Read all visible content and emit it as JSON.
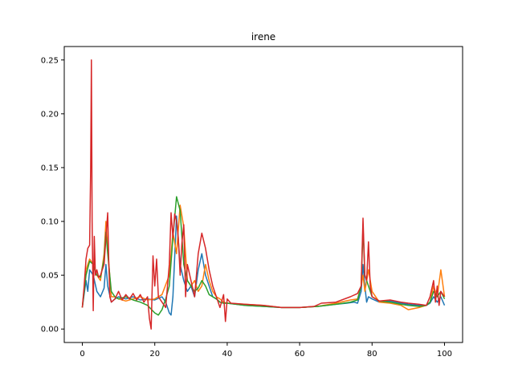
{
  "chart_data": {
    "type": "line",
    "title": "irene",
    "xlabel": "",
    "ylabel": "",
    "xlim": [
      -5,
      105
    ],
    "ylim": [
      -0.0125,
      0.2625
    ],
    "x_ticks": [
      0,
      20,
      40,
      60,
      80,
      100
    ],
    "x_tick_labels": [
      "0",
      "20",
      "40",
      "60",
      "80",
      "100"
    ],
    "y_ticks": [
      0.0,
      0.05,
      0.1,
      0.15,
      0.2,
      0.25
    ],
    "y_tick_labels": [
      "0.00",
      "0.05",
      "0.10",
      "0.15",
      "0.20",
      "0.25"
    ],
    "grid": false,
    "legend": "none",
    "series": [
      {
        "color": "#1f77b4",
        "points": [
          [
            0,
            0.02
          ],
          [
            1,
            0.045
          ],
          [
            1.5,
            0.035
          ],
          [
            2,
            0.055
          ],
          [
            3,
            0.05
          ],
          [
            4,
            0.035
          ],
          [
            5,
            0.03
          ],
          [
            6,
            0.038
          ],
          [
            6.5,
            0.06
          ],
          [
            7,
            0.04
          ],
          [
            8,
            0.025
          ],
          [
            9,
            0.028
          ],
          [
            10,
            0.03
          ],
          [
            12,
            0.028
          ],
          [
            14,
            0.03
          ],
          [
            16,
            0.027
          ],
          [
            18,
            0.028
          ],
          [
            20,
            0.027
          ],
          [
            22,
            0.03
          ],
          [
            23,
            0.025
          ],
          [
            24,
            0.015
          ],
          [
            24.5,
            0.013
          ],
          [
            25,
            0.03
          ],
          [
            26,
            0.105
          ],
          [
            27,
            0.06
          ],
          [
            28,
            0.045
          ],
          [
            29,
            0.035
          ],
          [
            30,
            0.04
          ],
          [
            31,
            0.03
          ],
          [
            32,
            0.055
          ],
          [
            33,
            0.07
          ],
          [
            34,
            0.05
          ],
          [
            35,
            0.04
          ],
          [
            36,
            0.03
          ],
          [
            37,
            0.028
          ],
          [
            38,
            0.025
          ],
          [
            39,
            0.024
          ],
          [
            40,
            0.024
          ],
          [
            45,
            0.022
          ],
          [
            50,
            0.021
          ],
          [
            55,
            0.02
          ],
          [
            60,
            0.02
          ],
          [
            65,
            0.021
          ],
          [
            70,
            0.023
          ],
          [
            73,
            0.024
          ],
          [
            75,
            0.025
          ],
          [
            76,
            0.024
          ],
          [
            77,
            0.035
          ],
          [
            77.5,
            0.06
          ],
          [
            78,
            0.04
          ],
          [
            78.5,
            0.025
          ],
          [
            79,
            0.03
          ],
          [
            80,
            0.028
          ],
          [
            82,
            0.025
          ],
          [
            85,
            0.026
          ],
          [
            88,
            0.024
          ],
          [
            90,
            0.023
          ],
          [
            93,
            0.022
          ],
          [
            95,
            0.022
          ],
          [
            96,
            0.024
          ],
          [
            97,
            0.03
          ],
          [
            98,
            0.025
          ],
          [
            99,
            0.03
          ],
          [
            100,
            0.022
          ]
        ]
      },
      {
        "color": "#ff7f0e",
        "points": [
          [
            0,
            0.02
          ],
          [
            1,
            0.055
          ],
          [
            2,
            0.065
          ],
          [
            3,
            0.06
          ],
          [
            4,
            0.05
          ],
          [
            5,
            0.045
          ],
          [
            6,
            0.07
          ],
          [
            6.5,
            0.1
          ],
          [
            7,
            0.075
          ],
          [
            8,
            0.03
          ],
          [
            9,
            0.03
          ],
          [
            10,
            0.028
          ],
          [
            12,
            0.026
          ],
          [
            14,
            0.028
          ],
          [
            16,
            0.03
          ],
          [
            18,
            0.027
          ],
          [
            20,
            0.028
          ],
          [
            22,
            0.032
          ],
          [
            24,
            0.05
          ],
          [
            25,
            0.09
          ],
          [
            26,
            0.07
          ],
          [
            27,
            0.115
          ],
          [
            28,
            0.095
          ],
          [
            29,
            0.045
          ],
          [
            30,
            0.04
          ],
          [
            31,
            0.045
          ],
          [
            32,
            0.035
          ],
          [
            33,
            0.04
          ],
          [
            34,
            0.06
          ],
          [
            35,
            0.045
          ],
          [
            36,
            0.035
          ],
          [
            37,
            0.03
          ],
          [
            38,
            0.028
          ],
          [
            39,
            0.025
          ],
          [
            40,
            0.024
          ],
          [
            45,
            0.023
          ],
          [
            50,
            0.022
          ],
          [
            55,
            0.02
          ],
          [
            60,
            0.02
          ],
          [
            65,
            0.021
          ],
          [
            70,
            0.024
          ],
          [
            74,
            0.027
          ],
          [
            76,
            0.028
          ],
          [
            77,
            0.04
          ],
          [
            77.5,
            0.05
          ],
          [
            78,
            0.035
          ],
          [
            79,
            0.055
          ],
          [
            80,
            0.035
          ],
          [
            82,
            0.025
          ],
          [
            85,
            0.024
          ],
          [
            88,
            0.022
          ],
          [
            90,
            0.018
          ],
          [
            93,
            0.02
          ],
          [
            95,
            0.022
          ],
          [
            96,
            0.025
          ],
          [
            97,
            0.04
          ],
          [
            98,
            0.03
          ],
          [
            99,
            0.055
          ],
          [
            100,
            0.03
          ]
        ]
      },
      {
        "color": "#2ca02c",
        "points": [
          [
            0,
            0.02
          ],
          [
            1,
            0.05
          ],
          [
            2,
            0.063
          ],
          [
            3,
            0.06
          ],
          [
            4,
            0.05
          ],
          [
            5,
            0.048
          ],
          [
            6,
            0.065
          ],
          [
            6.5,
            0.09
          ],
          [
            7,
            0.07
          ],
          [
            8,
            0.035
          ],
          [
            9,
            0.03
          ],
          [
            10,
            0.028
          ],
          [
            12,
            0.03
          ],
          [
            14,
            0.027
          ],
          [
            16,
            0.025
          ],
          [
            18,
            0.022
          ],
          [
            20,
            0.015
          ],
          [
            21,
            0.013
          ],
          [
            22,
            0.018
          ],
          [
            23,
            0.028
          ],
          [
            24,
            0.04
          ],
          [
            25,
            0.085
          ],
          [
            26,
            0.123
          ],
          [
            27,
            0.11
          ],
          [
            28,
            0.06
          ],
          [
            29,
            0.045
          ],
          [
            30,
            0.04
          ],
          [
            31,
            0.035
          ],
          [
            32,
            0.038
          ],
          [
            33,
            0.045
          ],
          [
            34,
            0.04
          ],
          [
            35,
            0.032
          ],
          [
            36,
            0.03
          ],
          [
            37,
            0.028
          ],
          [
            38,
            0.025
          ],
          [
            39,
            0.024
          ],
          [
            40,
            0.024
          ],
          [
            45,
            0.022
          ],
          [
            50,
            0.021
          ],
          [
            55,
            0.02
          ],
          [
            60,
            0.02
          ],
          [
            65,
            0.021
          ],
          [
            70,
            0.023
          ],
          [
            74,
            0.025
          ],
          [
            76,
            0.027
          ],
          [
            77,
            0.04
          ],
          [
            77.5,
            0.095
          ],
          [
            78,
            0.05
          ],
          [
            79,
            0.04
          ],
          [
            80,
            0.03
          ],
          [
            82,
            0.026
          ],
          [
            85,
            0.025
          ],
          [
            88,
            0.023
          ],
          [
            90,
            0.022
          ],
          [
            93,
            0.021
          ],
          [
            95,
            0.022
          ],
          [
            96,
            0.025
          ],
          [
            97,
            0.035
          ],
          [
            98,
            0.03
          ],
          [
            99,
            0.035
          ],
          [
            100,
            0.028
          ]
        ]
      },
      {
        "color": "#d62728",
        "points": [
          [
            0,
            0.02
          ],
          [
            0.5,
            0.04
          ],
          [
            1,
            0.065
          ],
          [
            1.5,
            0.075
          ],
          [
            2,
            0.078
          ],
          [
            2.3,
            0.15
          ],
          [
            2.5,
            0.25
          ],
          [
            2.7,
            0.1
          ],
          [
            3,
            0.017
          ],
          [
            3.3,
            0.086
          ],
          [
            3.6,
            0.05
          ],
          [
            4,
            0.055
          ],
          [
            4.5,
            0.048
          ],
          [
            5,
            0.05
          ],
          [
            6,
            0.06
          ],
          [
            6.5,
            0.085
          ],
          [
            7,
            0.108
          ],
          [
            7.3,
            0.06
          ],
          [
            7.6,
            0.03
          ],
          [
            8,
            0.025
          ],
          [
            9,
            0.028
          ],
          [
            10,
            0.035
          ],
          [
            11,
            0.027
          ],
          [
            12,
            0.032
          ],
          [
            13,
            0.028
          ],
          [
            14,
            0.033
          ],
          [
            15,
            0.027
          ],
          [
            16,
            0.032
          ],
          [
            17,
            0.025
          ],
          [
            18,
            0.03
          ],
          [
            18.5,
            0.01
          ],
          [
            19,
            0.0
          ],
          [
            19.5,
            0.068
          ],
          [
            20,
            0.04
          ],
          [
            20.5,
            0.065
          ],
          [
            21,
            0.03
          ],
          [
            22,
            0.025
          ],
          [
            23,
            0.02
          ],
          [
            24,
            0.06
          ],
          [
            24.5,
            0.108
          ],
          [
            25,
            0.085
          ],
          [
            25.5,
            0.107
          ],
          [
            26,
            0.1
          ],
          [
            26.5,
            0.085
          ],
          [
            27,
            0.05
          ],
          [
            27.5,
            0.08
          ],
          [
            28,
            0.097
          ],
          [
            28.5,
            0.03
          ],
          [
            29,
            0.06
          ],
          [
            30,
            0.045
          ],
          [
            31,
            0.03
          ],
          [
            32,
            0.07
          ],
          [
            33,
            0.089
          ],
          [
            34,
            0.075
          ],
          [
            35,
            0.055
          ],
          [
            36,
            0.04
          ],
          [
            37,
            0.03
          ],
          [
            38,
            0.02
          ],
          [
            39,
            0.032
          ],
          [
            39.5,
            0.007
          ],
          [
            40,
            0.028
          ],
          [
            41,
            0.024
          ],
          [
            45,
            0.023
          ],
          [
            50,
            0.022
          ],
          [
            55,
            0.02
          ],
          [
            60,
            0.02
          ],
          [
            64,
            0.021
          ],
          [
            66,
            0.024
          ],
          [
            70,
            0.025
          ],
          [
            74,
            0.03
          ],
          [
            76,
            0.033
          ],
          [
            77,
            0.04
          ],
          [
            77.5,
            0.103
          ],
          [
            78,
            0.05
          ],
          [
            78.5,
            0.045
          ],
          [
            79,
            0.081
          ],
          [
            79.5,
            0.04
          ],
          [
            80,
            0.03
          ],
          [
            82,
            0.026
          ],
          [
            85,
            0.027
          ],
          [
            88,
            0.025
          ],
          [
            90,
            0.024
          ],
          [
            93,
            0.023
          ],
          [
            95,
            0.022
          ],
          [
            96,
            0.03
          ],
          [
            97,
            0.045
          ],
          [
            97.5,
            0.025
          ],
          [
            98,
            0.04
          ],
          [
            98.5,
            0.022
          ],
          [
            99,
            0.035
          ],
          [
            100,
            0.03
          ]
        ]
      }
    ]
  }
}
